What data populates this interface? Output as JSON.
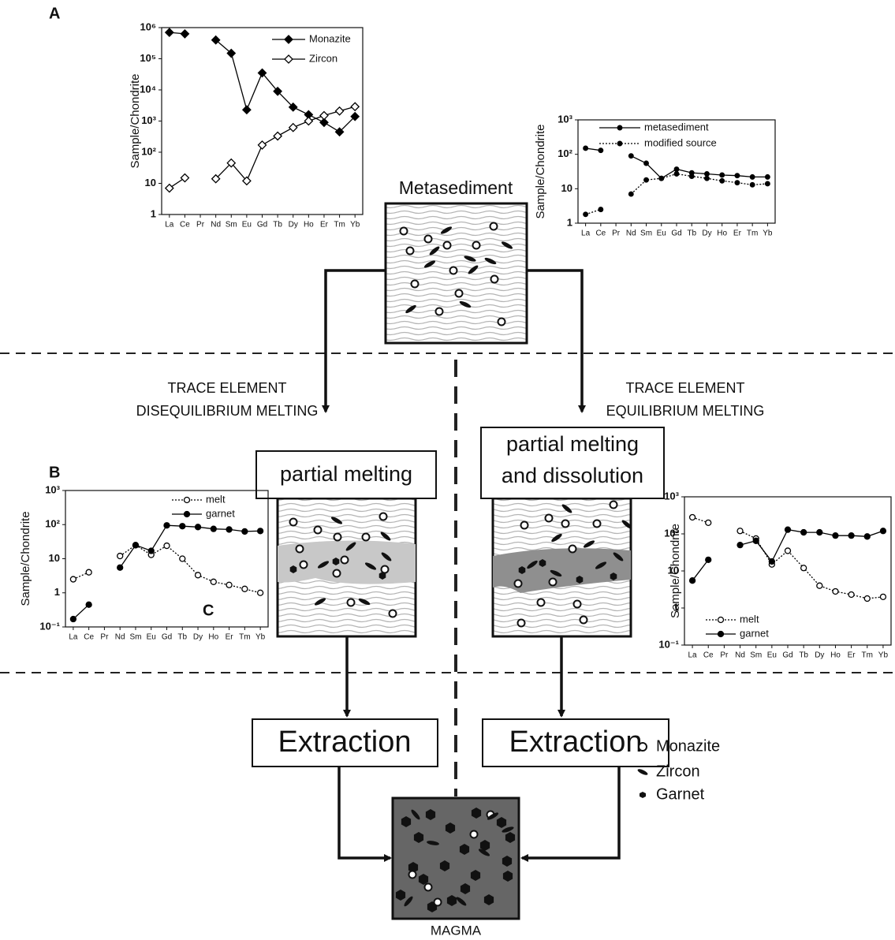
{
  "panel_labels": [
    "A",
    "B",
    "C"
  ],
  "diagram": {
    "source_label": "Metasediment",
    "left_branch": [
      "TRACE ELEMENT",
      "DISEQUILIBRIUM MELTING"
    ],
    "right_branch": [
      "TRACE ELEMENT",
      "EQUILIBRIUM MELTING"
    ],
    "left_step": [
      "partial melting"
    ],
    "right_step": [
      "partial melting",
      "and dissolution"
    ],
    "extraction": [
      "Extraction",
      "Extraction"
    ],
    "result_label": "MAGMA",
    "legend": [
      "Monazite",
      "Zircon",
      "Garnet"
    ]
  },
  "chart_data": [
    {
      "type": "line",
      "y_label": "Sample/Chondrite",
      "log_y": true,
      "categories": [
        "La",
        "Ce",
        "Pr",
        "Nd",
        "Sm",
        "Eu",
        "Gd",
        "Tb",
        "Dy",
        "Ho",
        "Er",
        "Tm",
        "Yb"
      ],
      "ylim": [
        1,
        1000000
      ],
      "yticks": [
        1,
        10,
        {
          "value": 100,
          "label": "10²"
        },
        {
          "value": 1000,
          "label": "10³"
        },
        {
          "value": 10000,
          "label": "10⁴"
        },
        {
          "value": 100000,
          "label": "10⁵"
        },
        {
          "value": 1000000,
          "label": "10⁶"
        }
      ],
      "series": [
        {
          "name": "Monazite",
          "color": "#000000",
          "marker": "diamond",
          "marker_fill": "filled",
          "line_style": "solid",
          "values": [
            700000,
            630000,
            null,
            400000,
            150000,
            2300,
            35000,
            9000,
            2800,
            1600,
            900,
            450,
            1400
          ]
        },
        {
          "name": "Zircon",
          "color": "#000000",
          "marker": "diamond",
          "marker_fill": "open",
          "line_style": "solid",
          "values": [
            7,
            15,
            null,
            14,
            45,
            12,
            170,
            330,
            620,
            1000,
            1500,
            2100,
            2900
          ]
        }
      ]
    },
    {
      "type": "line",
      "y_label": "Sample/Chondrite",
      "log_y": true,
      "categories": [
        "La",
        "Ce",
        "Pr",
        "Nd",
        "Sm",
        "Eu",
        "Gd",
        "Tb",
        "Dy",
        "Ho",
        "Er",
        "Tm",
        "Yb"
      ],
      "ylim": [
        1,
        1000
      ],
      "yticks": [
        1,
        10,
        {
          "value": 100,
          "label": "10²"
        },
        {
          "value": 1000,
          "label": "10³"
        }
      ],
      "series": [
        {
          "name": "metasediment",
          "color": "#000000",
          "marker": "dot",
          "marker_fill": "filled",
          "line_style": "solid",
          "values": [
            150,
            130,
            null,
            90,
            55,
            20,
            37,
            29,
            27,
            25,
            24,
            22,
            22
          ]
        },
        {
          "name": "modified source",
          "color": "#000000",
          "marker": "dot",
          "marker_fill": "filled",
          "line_style": "dotted",
          "values": [
            1.8,
            2.5,
            null,
            7,
            18,
            20,
            27,
            23,
            20,
            17,
            15,
            13,
            14
          ]
        }
      ]
    },
    {
      "type": "line",
      "y_label": "Sample/Chondrite",
      "log_y": true,
      "categories": [
        "La",
        "Ce",
        "Pr",
        "Nd",
        "Sm",
        "Eu",
        "Gd",
        "Tb",
        "Dy",
        "Ho",
        "Er",
        "Tm",
        "Yb"
      ],
      "ylim": [
        0.1,
        1000
      ],
      "yticks": [
        {
          "value": 0.1,
          "label": "10⁻¹"
        },
        1,
        10,
        {
          "value": 100,
          "label": "10²"
        },
        {
          "value": 1000,
          "label": "10³"
        }
      ],
      "series": [
        {
          "name": "melt",
          "color": "#000000",
          "marker": "circle",
          "marker_fill": "open",
          "line_style": "dotted",
          "values": [
            2.5,
            4,
            null,
            12,
            25,
            13,
            24,
            10,
            3.3,
            2.1,
            1.7,
            1.3,
            1
          ]
        },
        {
          "name": "garnet",
          "color": "#000000",
          "marker": "circle",
          "marker_fill": "filled",
          "line_style": "solid",
          "values": [
            0.17,
            0.45,
            null,
            5.5,
            25,
            17,
            95,
            90,
            85,
            75,
            72,
            63,
            65
          ]
        }
      ]
    },
    {
      "type": "line",
      "y_label": "Sample/Chondrite",
      "log_y": true,
      "categories": [
        "La",
        "Ce",
        "Pr",
        "Nd",
        "Sm",
        "Eu",
        "Gd",
        "Tb",
        "Dy",
        "Ho",
        "Er",
        "Tm",
        "Yb"
      ],
      "ylim": [
        0.1,
        1000
      ],
      "yticks": [
        {
          "value": 0.1,
          "label": "10⁻¹"
        },
        1,
        10,
        {
          "value": 100,
          "label": "10²"
        },
        {
          "value": 1000,
          "label": "10³"
        }
      ],
      "series": [
        {
          "name": "melt",
          "color": "#000000",
          "marker": "circle",
          "marker_fill": "open",
          "line_style": "dotted",
          "values": [
            280,
            200,
            null,
            120,
            75,
            15,
            35,
            12,
            4,
            2.8,
            2.3,
            1.8,
            2
          ]
        },
        {
          "name": "garnet",
          "color": "#000000",
          "marker": "circle",
          "marker_fill": "filled",
          "line_style": "solid",
          "values": [
            5.5,
            20,
            null,
            50,
            65,
            18,
            130,
            110,
            110,
            90,
            90,
            85,
            120
          ]
        }
      ]
    }
  ]
}
